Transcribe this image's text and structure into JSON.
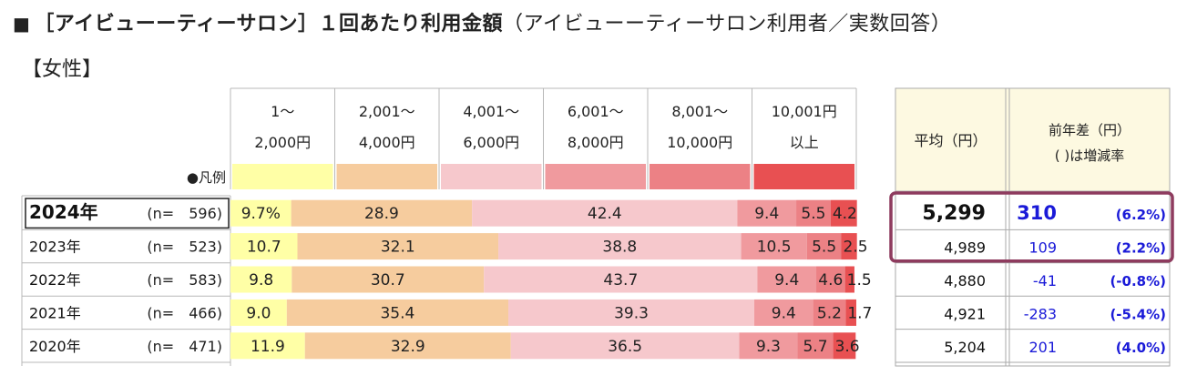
{
  "title": {
    "square": "■",
    "main": "［アイビューーティーサロン］１回あたり利用金額",
    "sub": "（アイビューーティーサロン利用者／実数回答）"
  },
  "subtitle": "【女性】",
  "legend_label": "●凡例",
  "header": {
    "avg": "平均（円）",
    "diff_line1": "前年差（円）",
    "diff_line2": "( )は増減率"
  },
  "colors": [
    "#ffffa6",
    "#f6cc9e",
    "#f6c8cc",
    "#f09a9e",
    "#ec8185",
    "#e85052"
  ],
  "chart_data": {
    "type": "bar",
    "orientation": "horizontal-stacked-100",
    "categories": [
      {
        "line1": "1～",
        "line2": "2,000円"
      },
      {
        "line1": "2,001～",
        "line2": "4,000円"
      },
      {
        "line1": "4,001～",
        "line2": "6,000円"
      },
      {
        "line1": "6,001～",
        "line2": "8,000円"
      },
      {
        "line1": "8,001～",
        "line2": "10,000円"
      },
      {
        "line1": "10,001円",
        "line2": "以上"
      }
    ],
    "rows": [
      {
        "year": "2024年",
        "n": "(n=　596)",
        "values": [
          9.7,
          28.9,
          42.4,
          9.4,
          5.5,
          4.2
        ],
        "labels": [
          "9.7%",
          "28.9",
          "42.4",
          "9.4",
          "5.5",
          "4.2"
        ],
        "avg": "5,299",
        "diff": "310",
        "rate": "(6.2%)",
        "highlight": true
      },
      {
        "year": "2023年",
        "n": "(n=　523)",
        "values": [
          10.7,
          32.1,
          38.8,
          10.5,
          5.5,
          2.5
        ],
        "labels": [
          "10.7",
          "32.1",
          "38.8",
          "10.5",
          "5.5",
          "2.5"
        ],
        "avg": "4,989",
        "diff": "109",
        "rate": "(2.2%)",
        "highlight": false
      },
      {
        "year": "2022年",
        "n": "(n=　583)",
        "values": [
          9.8,
          30.7,
          43.7,
          9.4,
          4.6,
          1.5
        ],
        "labels": [
          "9.8",
          "30.7",
          "43.7",
          "9.4",
          "4.6",
          "1.5"
        ],
        "avg": "4,880",
        "diff": "-41",
        "rate": "(-0.8%)",
        "highlight": false
      },
      {
        "year": "2021年",
        "n": "(n=　466)",
        "values": [
          9.0,
          35.4,
          39.3,
          9.4,
          5.2,
          1.7
        ],
        "labels": [
          "9.0",
          "35.4",
          "39.3",
          "9.4",
          "5.2",
          "1.7"
        ],
        "avg": "4,921",
        "diff": "-283",
        "rate": "(-5.4%)",
        "highlight": false
      },
      {
        "year": "2020年",
        "n": "(n=　471)",
        "values": [
          11.9,
          32.9,
          36.5,
          9.3,
          5.7,
          3.6
        ],
        "labels": [
          "11.9",
          "32.9",
          "36.5",
          "9.3",
          "5.7",
          "3.6"
        ],
        "avg": "5,204",
        "diff": "201",
        "rate": "(4.0%)",
        "highlight": false
      }
    ]
  }
}
